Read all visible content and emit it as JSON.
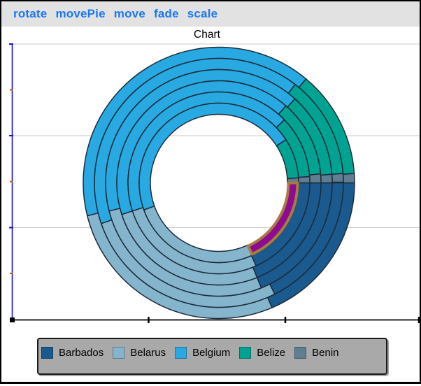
{
  "toolbar": {
    "background": "#e2e2e2",
    "link_color": "#1b78f5",
    "links": [
      "rotate",
      "movePie",
      "move",
      "fade",
      "scale"
    ]
  },
  "chart_data": {
    "type": "pie",
    "variant": "nested-donut-6-rings",
    "title": "Chart",
    "categories": [
      "Barbados",
      "Belarus",
      "Belgium",
      "Belize",
      "Benin"
    ],
    "colors": [
      "#1a5a8f",
      "#85b4cd",
      "#29a9e1",
      "#00a392",
      "#5f7e92"
    ],
    "start_angle_deg": 90,
    "rings": [
      {
        "name": "ring-1-outermost",
        "values_pct": [
          18.6,
          27.5,
          40.0,
          12.8,
          1.1
        ]
      },
      {
        "name": "ring-2",
        "values_pct": [
          17.6,
          27.1,
          40.8,
          13.3,
          1.1
        ]
      },
      {
        "name": "ring-3",
        "values_pct": [
          18.9,
          27.1,
          40.7,
          12.1,
          1.2
        ]
      },
      {
        "name": "ring-4",
        "values_pct": [
          18.9,
          26.1,
          41.4,
          12.2,
          1.4
        ]
      },
      {
        "name": "ring-5",
        "values_pct": [
          18.3,
          26.7,
          42.8,
          11.1,
          1.1
        ]
      },
      {
        "name": "ring-6-innermost",
        "values_pct": [
          18.1,
          26.4,
          46.4,
          8.1,
          1.1
        ]
      }
    ],
    "highlighted_slice": {
      "ring_index": 5,
      "category": "Barbados",
      "fill": "#8d0a93",
      "stroke": "#a97c3d",
      "stroke_width": 4
    },
    "slice_stroke": "#1c2b3a",
    "grid": true,
    "legend_position": "bottom",
    "y_axis": {
      "line_color": "#1414cc",
      "major_tick_color": "#1414cc",
      "minor_tick_color": "#b65a1e",
      "gridline_color": "#cbcbcb"
    },
    "x_axis": {
      "line_color": "#000000",
      "tick_color": "#000000"
    }
  },
  "legend": {
    "background": "#a9a9a9",
    "items": [
      {
        "label": "Barbados",
        "color": "#1a5a8f"
      },
      {
        "label": "Belarus",
        "color": "#85b4cd"
      },
      {
        "label": "Belgium",
        "color": "#29a9e1"
      },
      {
        "label": "Belize",
        "color": "#00a392"
      },
      {
        "label": "Benin",
        "color": "#5f7e92"
      }
    ]
  }
}
